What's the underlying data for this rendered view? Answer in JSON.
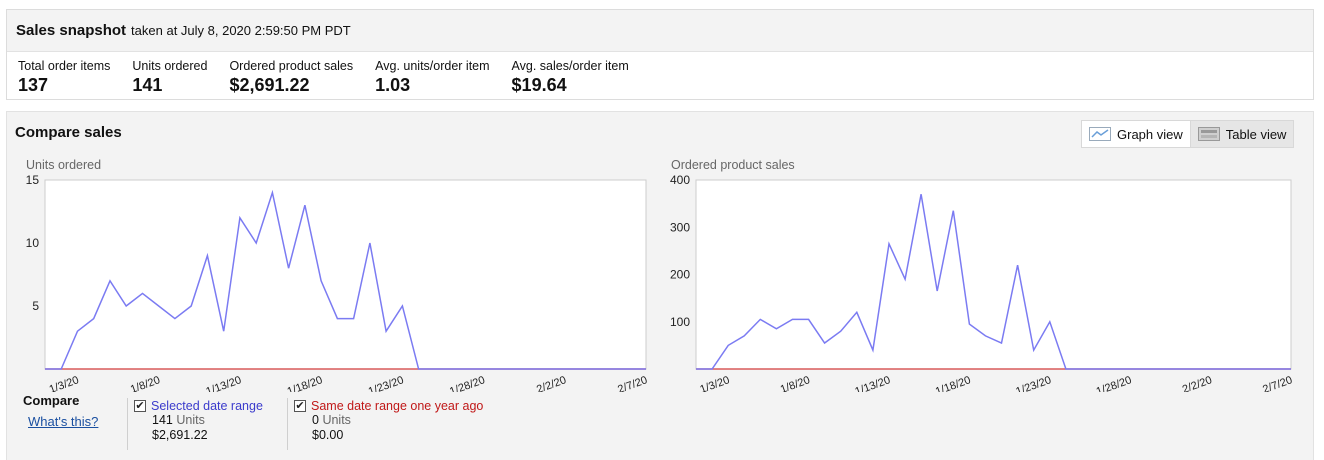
{
  "snapshot": {
    "title": "Sales snapshot",
    "subtitle": "taken at July 8, 2020 2:59:50 PM PDT",
    "metrics": [
      {
        "label": "Total order items",
        "value": "137"
      },
      {
        "label": "Units ordered",
        "value": "141"
      },
      {
        "label": "Ordered product sales",
        "value": "$2,691.22"
      },
      {
        "label": "Avg. units/order item",
        "value": "1.03"
      },
      {
        "label": "Avg. sales/order item",
        "value": "$19.64"
      }
    ]
  },
  "compare": {
    "title": "Compare sales",
    "graph_view_label": "Graph view",
    "table_view_label": "Table view",
    "compare_label": "Compare",
    "whats_this": "What's this?",
    "legend": {
      "selected": {
        "label": "Selected date range",
        "units_value": "141",
        "units_word": "Units",
        "sales": "$2,691.22",
        "color": "#3b3bcc"
      },
      "prior": {
        "label": "Same date range one year ago",
        "units_value": "0",
        "units_word": "Units",
        "sales": "$0.00",
        "color": "#c01818"
      }
    }
  },
  "chart_data": [
    {
      "type": "line",
      "title": "Units ordered",
      "x_tick_labels": [
        "1/3/20",
        "1/8/20",
        "1/13/20",
        "1/18/20",
        "1/23/20",
        "1/28/20",
        "2/2/20",
        "2/7/20"
      ],
      "x": [
        "1/1/20",
        "1/2/20",
        "1/3/20",
        "1/4/20",
        "1/5/20",
        "1/6/20",
        "1/7/20",
        "1/8/20",
        "1/9/20",
        "1/10/20",
        "1/11/20",
        "1/12/20",
        "1/13/20",
        "1/14/20",
        "1/15/20",
        "1/16/20",
        "1/17/20",
        "1/18/20",
        "1/19/20",
        "1/20/20",
        "1/21/20",
        "1/22/20",
        "1/23/20",
        "1/24/20",
        "1/25/20",
        "1/26/20",
        "1/27/20",
        "1/28/20",
        "1/29/20",
        "1/30/20",
        "1/31/20",
        "2/1/20",
        "2/2/20",
        "2/3/20",
        "2/4/20",
        "2/5/20",
        "2/6/20",
        "2/7/20"
      ],
      "yticks": [
        5,
        10,
        15
      ],
      "ylim": [
        0,
        15
      ],
      "series": [
        {
          "name": "Selected date range",
          "color": "#7b7bf2",
          "values": [
            0,
            0,
            3,
            4,
            7,
            5,
            6,
            5,
            4,
            5,
            9,
            3,
            12,
            10,
            14,
            8,
            13,
            7,
            4,
            4,
            10,
            3,
            5,
            0,
            0,
            0,
            0,
            0,
            0,
            0,
            0,
            0,
            0,
            0,
            0,
            0,
            0,
            0
          ]
        },
        {
          "name": "Same date range one year ago",
          "color": "#d95b5b",
          "values": [
            0,
            0,
            0,
            0,
            0,
            0,
            0,
            0,
            0,
            0,
            0,
            0,
            0,
            0,
            0,
            0,
            0,
            0,
            0,
            0,
            0,
            0,
            0,
            0,
            0,
            0,
            0,
            0,
            0,
            0,
            0,
            0,
            0,
            0,
            0,
            0,
            0,
            0
          ]
        }
      ]
    },
    {
      "type": "line",
      "title": "Ordered product sales",
      "x_tick_labels": [
        "1/3/20",
        "1/8/20",
        "1/13/20",
        "1/18/20",
        "1/23/20",
        "1/28/20",
        "2/2/20",
        "2/7/20"
      ],
      "x": [
        "1/1/20",
        "1/2/20",
        "1/3/20",
        "1/4/20",
        "1/5/20",
        "1/6/20",
        "1/7/20",
        "1/8/20",
        "1/9/20",
        "1/10/20",
        "1/11/20",
        "1/12/20",
        "1/13/20",
        "1/14/20",
        "1/15/20",
        "1/16/20",
        "1/17/20",
        "1/18/20",
        "1/19/20",
        "1/20/20",
        "1/21/20",
        "1/22/20",
        "1/23/20",
        "1/24/20",
        "1/25/20",
        "1/26/20",
        "1/27/20",
        "1/28/20",
        "1/29/20",
        "1/30/20",
        "1/31/20",
        "2/1/20",
        "2/2/20",
        "2/3/20",
        "2/4/20",
        "2/5/20",
        "2/6/20",
        "2/7/20"
      ],
      "yticks": [
        100,
        200,
        300,
        400
      ],
      "ylim": [
        0,
        400
      ],
      "series": [
        {
          "name": "Selected date range",
          "color": "#7b7bf2",
          "values": [
            0,
            0,
            50,
            70,
            105,
            85,
            105,
            105,
            55,
            80,
            120,
            40,
            265,
            190,
            370,
            165,
            335,
            95,
            70,
            55,
            220,
            40,
            100,
            0,
            0,
            0,
            0,
            0,
            0,
            0,
            0,
            0,
            0,
            0,
            0,
            0,
            0,
            0
          ]
        },
        {
          "name": "Same date range one year ago",
          "color": "#d95b5b",
          "values": [
            0,
            0,
            0,
            0,
            0,
            0,
            0,
            0,
            0,
            0,
            0,
            0,
            0,
            0,
            0,
            0,
            0,
            0,
            0,
            0,
            0,
            0,
            0,
            0,
            0,
            0,
            0,
            0,
            0,
            0,
            0,
            0,
            0,
            0,
            0,
            0,
            0,
            0
          ]
        }
      ]
    }
  ]
}
